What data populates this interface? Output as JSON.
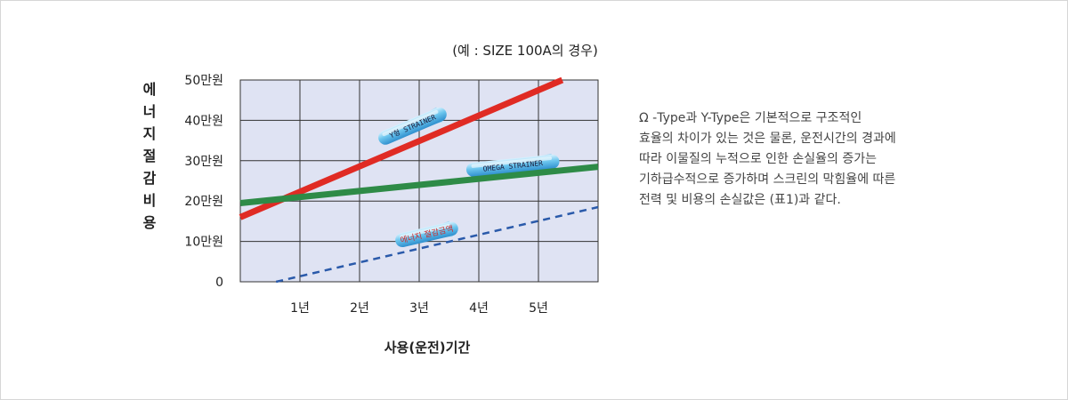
{
  "note": "(예 : SIZE 100A의 경우)",
  "ylabel": "에너지절감비용",
  "xlabel": "사용(운전)기간",
  "description": [
    "Ω -Type과 Y-Type은 기본적으로 구조적인",
    "효율의 차이가 있는 것은 물론, 운전시간의 경과에",
    "따라 이물질의 누적으로 인한 손실율의 증가는",
    "기하급수적으로 증가하며 스크린의 막힘율에 따른",
    "전력 및 비용의 손실값은 (표1)과 같다."
  ],
  "chart_data": {
    "type": "line",
    "title": "",
    "xlabel": "사용(운전)기간",
    "ylabel": "에너지절감비용",
    "x_tick_labels": [
      "1년",
      "2년",
      "3년",
      "4년",
      "5년"
    ],
    "x_ticks": [
      1,
      2,
      3,
      4,
      5
    ],
    "xlim": [
      0,
      6
    ],
    "y_tick_labels": [
      "0",
      "10만원",
      "20만원",
      "30만원",
      "40만원",
      "50만원"
    ],
    "y_ticks": [
      0,
      10,
      20,
      30,
      40,
      50
    ],
    "ylim": [
      0,
      50
    ],
    "grid": true,
    "plot_background": "#dfe3f3",
    "series": [
      {
        "x": [
          0,
          5.4
        ],
        "y": [
          16,
          50
        ],
        "color": "#e02b24",
        "style": "solid"
      },
      {
        "x": [
          0,
          6
        ],
        "y": [
          19.5,
          28.5
        ],
        "color": "#2e8b47",
        "style": "solid"
      },
      {
        "x": [
          0.6,
          6
        ],
        "y": [
          0,
          18.5
        ],
        "color": "#2a5aaa",
        "style": "dashed"
      }
    ],
    "annotations": [
      {
        "text": "Y형 STRAINER",
        "series": 0
      },
      {
        "text": "OMEGA STRAINER",
        "series": 1
      },
      {
        "text": "에너지 절감금액",
        "series": 2
      }
    ]
  }
}
